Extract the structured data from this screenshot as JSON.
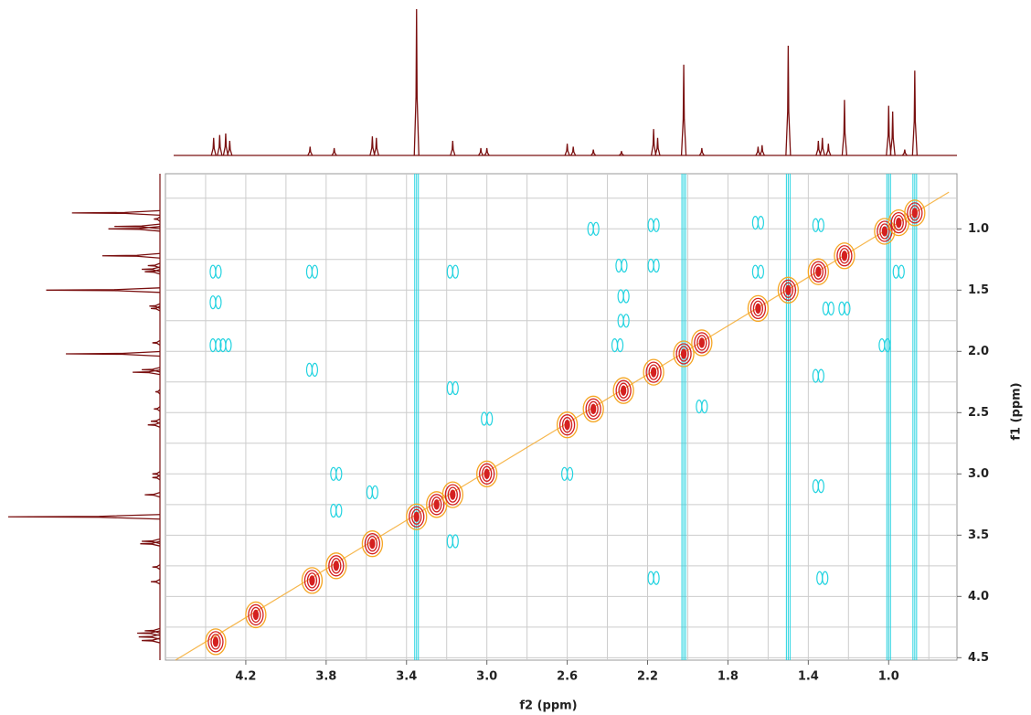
{
  "chart_data": {
    "type": "contour",
    "x_label": "f2 (ppm)",
    "y_label": "f1 (ppm)",
    "xlim": [
      4.6,
      0.66
    ],
    "ylim": [
      0.55,
      4.52
    ],
    "xticks": [
      4.2,
      3.8,
      3.4,
      {
        "value": 3,
        "label": "3.0"
      },
      2.6,
      2.2,
      1.8,
      1.4,
      {
        "value": 1,
        "label": "1.0"
      }
    ],
    "yticks": [
      {
        "value": 1,
        "label": "1.0"
      },
      1.5,
      {
        "value": 2,
        "label": "2.0"
      },
      2.5,
      {
        "value": 3,
        "label": "3.0"
      },
      3.5,
      {
        "value": 4,
        "label": "4.0"
      },
      4.5
    ],
    "xgrid": [
      4.4,
      4.0,
      3.6,
      3.2,
      2.8,
      2.4,
      2.0,
      1.6,
      1.2,
      0.8
    ],
    "ygrid": [
      0.75,
      1.25,
      1.75,
      2.25,
      2.75,
      3.25,
      3.75,
      4.25
    ],
    "grid": true,
    "diagonal": {
      "color": "#f5a623",
      "core_color": "#d42020",
      "x": [
        4.35,
        4.15,
        3.87,
        3.75,
        3.57,
        3.35,
        3.25,
        3.17,
        3.0,
        2.6,
        2.47,
        2.32,
        2.17,
        2.02,
        1.93,
        1.65,
        1.5,
        1.35,
        1.22,
        1.02,
        0.95,
        0.87
      ],
      "y": [
        4.37,
        4.15,
        3.87,
        3.75,
        3.57,
        3.35,
        3.25,
        3.17,
        3.0,
        2.6,
        2.47,
        2.32,
        2.17,
        2.02,
        1.93,
        1.65,
        1.5,
        1.35,
        1.22,
        1.02,
        0.95,
        0.87
      ]
    },
    "cross_peaks": {
      "color": "#22d3e0",
      "x": [
        4.35,
        4.35,
        4.35,
        4.3,
        3.87,
        3.87,
        3.17,
        3.17,
        3.17,
        3.0,
        2.6,
        2.47,
        2.33,
        2.32,
        2.32,
        2.35,
        2.17,
        2.17,
        2.17,
        1.93,
        1.65,
        1.65,
        1.35,
        1.3,
        1.35,
        1.33,
        1.35,
        1.22,
        0.95,
        3.75,
        3.75,
        3.57,
        1.02
      ],
      "y": [
        1.35,
        1.6,
        1.95,
        1.95,
        1.35,
        2.15,
        1.35,
        2.3,
        3.55,
        2.55,
        3.0,
        1.0,
        1.3,
        1.55,
        1.75,
        1.95,
        0.97,
        1.3,
        3.85,
        2.45,
        1.35,
        0.95,
        0.97,
        1.65,
        2.2,
        3.85,
        3.1,
        1.65,
        1.35,
        3.0,
        3.3,
        3.15,
        1.95
      ]
    },
    "t1_noise": {
      "x": [
        3.35,
        2.02,
        1.5,
        1.0,
        0.87
      ]
    },
    "projection": {
      "color": "#7a1010",
      "shifts": [
        4.36,
        4.33,
        4.3,
        4.28,
        3.88,
        3.76,
        3.57,
        3.55,
        3.35,
        3.17,
        3.03,
        3.0,
        2.6,
        2.57,
        2.47,
        2.33,
        2.17,
        2.15,
        2.02,
        1.93,
        1.65,
        1.63,
        1.5,
        1.35,
        1.33,
        1.3,
        1.22,
        1.0,
        0.98,
        0.92,
        0.87
      ],
      "heights": [
        12,
        14,
        15,
        10,
        6,
        5,
        13,
        12,
        100,
        10,
        5,
        5,
        8,
        6,
        4,
        3,
        18,
        12,
        62,
        5,
        6,
        7,
        75,
        10,
        12,
        8,
        38,
        34,
        30,
        4,
        58
      ]
    }
  }
}
